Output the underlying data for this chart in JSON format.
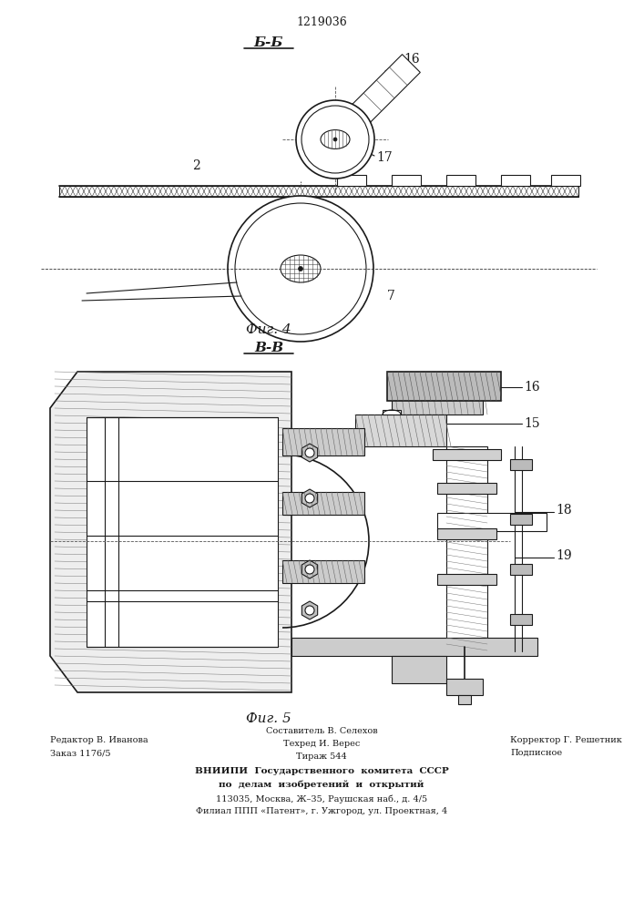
{
  "patent_number": "1219036",
  "fig4_label": "Б-Б",
  "fig5_label": "В-В",
  "fig4_caption": "Фиг. 4",
  "fig5_caption": "Фиг. 5",
  "footer_line1_left": "Редактор В. Иванова",
  "footer_line2_left": "Заказ 1176/5",
  "footer_line1_center": "Составитель В. Селехов",
  "footer_line2_center": "Техред И. Верес",
  "footer_line3_center": "Тираж 544",
  "footer_line1_right": "Корректор Г. Решетник",
  "footer_line2_right": "Подписное",
  "footer_vniipи": "ВНИИПИ  Государственного  комитета  СССР",
  "footer_vniipи2": "по  делам  изобретений  и  открытий",
  "footer_addr1": "113035, Москва, Ж–35, Раушская наб., д. 4/5",
  "footer_addr2": "Филиал ППП «Патент», г. Ужгород, ул. Проектная, 4",
  "bg_color": "#ffffff",
  "line_color": "#1a1a1a"
}
